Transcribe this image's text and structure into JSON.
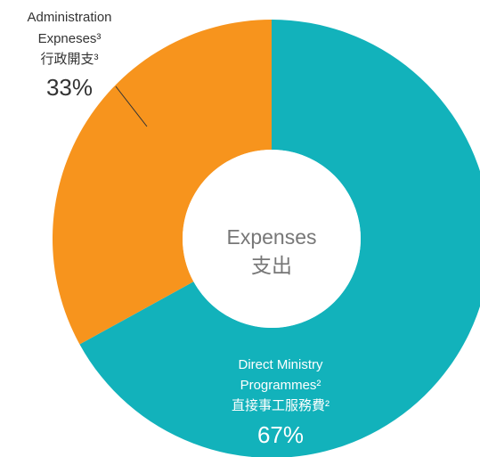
{
  "chart_data": {
    "type": "pie",
    "donut": true,
    "center_label": [
      "Expenses",
      "支出"
    ],
    "categories": [
      [
        "Direct Ministry",
        "Programmes²",
        "直接事工服務費²"
      ],
      [
        "Administration",
        "Expneses³",
        "行政開支³"
      ]
    ],
    "values": [
      67,
      33
    ],
    "value_labels": [
      "67%",
      "33%"
    ],
    "colors": [
      "#12b2bb",
      "#f7941d"
    ]
  }
}
